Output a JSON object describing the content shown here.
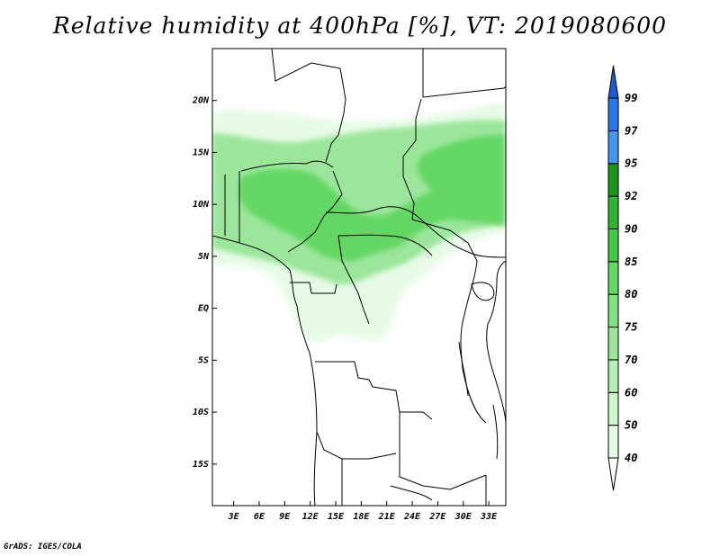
{
  "title": "Relative humidity at 400hPa [%], VT: 2019080600",
  "credit": "GrADS: IGES/COLA",
  "map": {
    "lat_range": [
      -19,
      25
    ],
    "lon_range": [
      0.5,
      35
    ],
    "lat_ticks": [
      {
        "value": 20,
        "label": "20N"
      },
      {
        "value": 15,
        "label": "15N"
      },
      {
        "value": 10,
        "label": "10N"
      },
      {
        "value": 5,
        "label": "5N"
      },
      {
        "value": 0,
        "label": "EQ"
      },
      {
        "value": -5,
        "label": "5S"
      },
      {
        "value": -10,
        "label": "10S"
      },
      {
        "value": -15,
        "label": "15S"
      }
    ],
    "lon_ticks": [
      {
        "value": 3,
        "label": "3E"
      },
      {
        "value": 6,
        "label": "6E"
      },
      {
        "value": 9,
        "label": "9E"
      },
      {
        "value": 12,
        "label": "12E"
      },
      {
        "value": 15,
        "label": "15E"
      },
      {
        "value": 18,
        "label": "18E"
      },
      {
        "value": 21,
        "label": "21E"
      },
      {
        "value": 24,
        "label": "24E"
      },
      {
        "value": 27,
        "label": "27E"
      },
      {
        "value": 30,
        "label": "30E"
      },
      {
        "value": 33,
        "label": "33E"
      }
    ]
  },
  "colorbar": {
    "levels": [
      "40",
      "50",
      "60",
      "70",
      "75",
      "80",
      "85",
      "90",
      "92",
      "95",
      "97",
      "99"
    ],
    "colors": [
      "#ffffff",
      "#e6fae6",
      "#cbf5cb",
      "#b4f0b4",
      "#9be69b",
      "#82e182",
      "#64d764",
      "#46c846",
      "#32b432",
      "#1e961e",
      "#4696f0",
      "#2878e6",
      "#1e5ad2"
    ]
  },
  "humidity_colors": {
    "low": "#e6fae6",
    "mid": "#9be69b",
    "high": "#64d764"
  }
}
